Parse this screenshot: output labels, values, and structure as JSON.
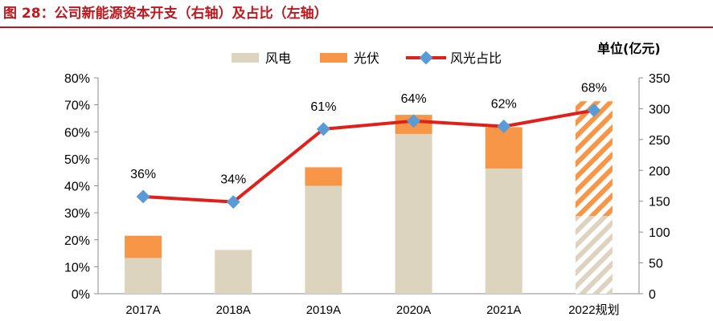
{
  "figure_title": "图 28：公司新能源资本开支（右轴）及占比（左轴）",
  "colors": {
    "title": "#c0171e",
    "wind": "#ddd4c0",
    "solar": "#f79646",
    "share_line": "#e0201b",
    "share_marker": "#5b9bd5"
  },
  "chart_data": {
    "type": "bar",
    "stacked": true,
    "categories": [
      "2017A",
      "2018A",
      "2019A",
      "2020A",
      "2021A",
      "2022规划"
    ],
    "series": [
      {
        "name": "风电",
        "axis": "right",
        "values": [
          58,
          71,
          175,
          259,
          203,
          126
        ]
      },
      {
        "name": "光伏",
        "axis": "right",
        "values": [
          36,
          0,
          30,
          31,
          67,
          186
        ]
      }
    ],
    "line_series": {
      "name": "风光占比",
      "axis": "left",
      "values": [
        36,
        34,
        61,
        64,
        62,
        68
      ],
      "labels": [
        "36%",
        "34%",
        "61%",
        "64%",
        "62%",
        "68%"
      ]
    },
    "hatched_categories": [
      "2022规划"
    ],
    "left_axis": {
      "ticks": [
        "0%",
        "10%",
        "20%",
        "30%",
        "40%",
        "50%",
        "60%",
        "70%",
        "80%"
      ],
      "ylim": [
        0,
        80
      ]
    },
    "right_axis": {
      "ticks": [
        "0",
        "50",
        "100",
        "150",
        "200",
        "250",
        "300",
        "350"
      ],
      "ylim": [
        0,
        350
      ],
      "unit_label": "单位(亿元)"
    },
    "legend": {
      "position": "top",
      "items": [
        "风电",
        "光伏",
        "风光占比"
      ]
    },
    "grid": false
  }
}
